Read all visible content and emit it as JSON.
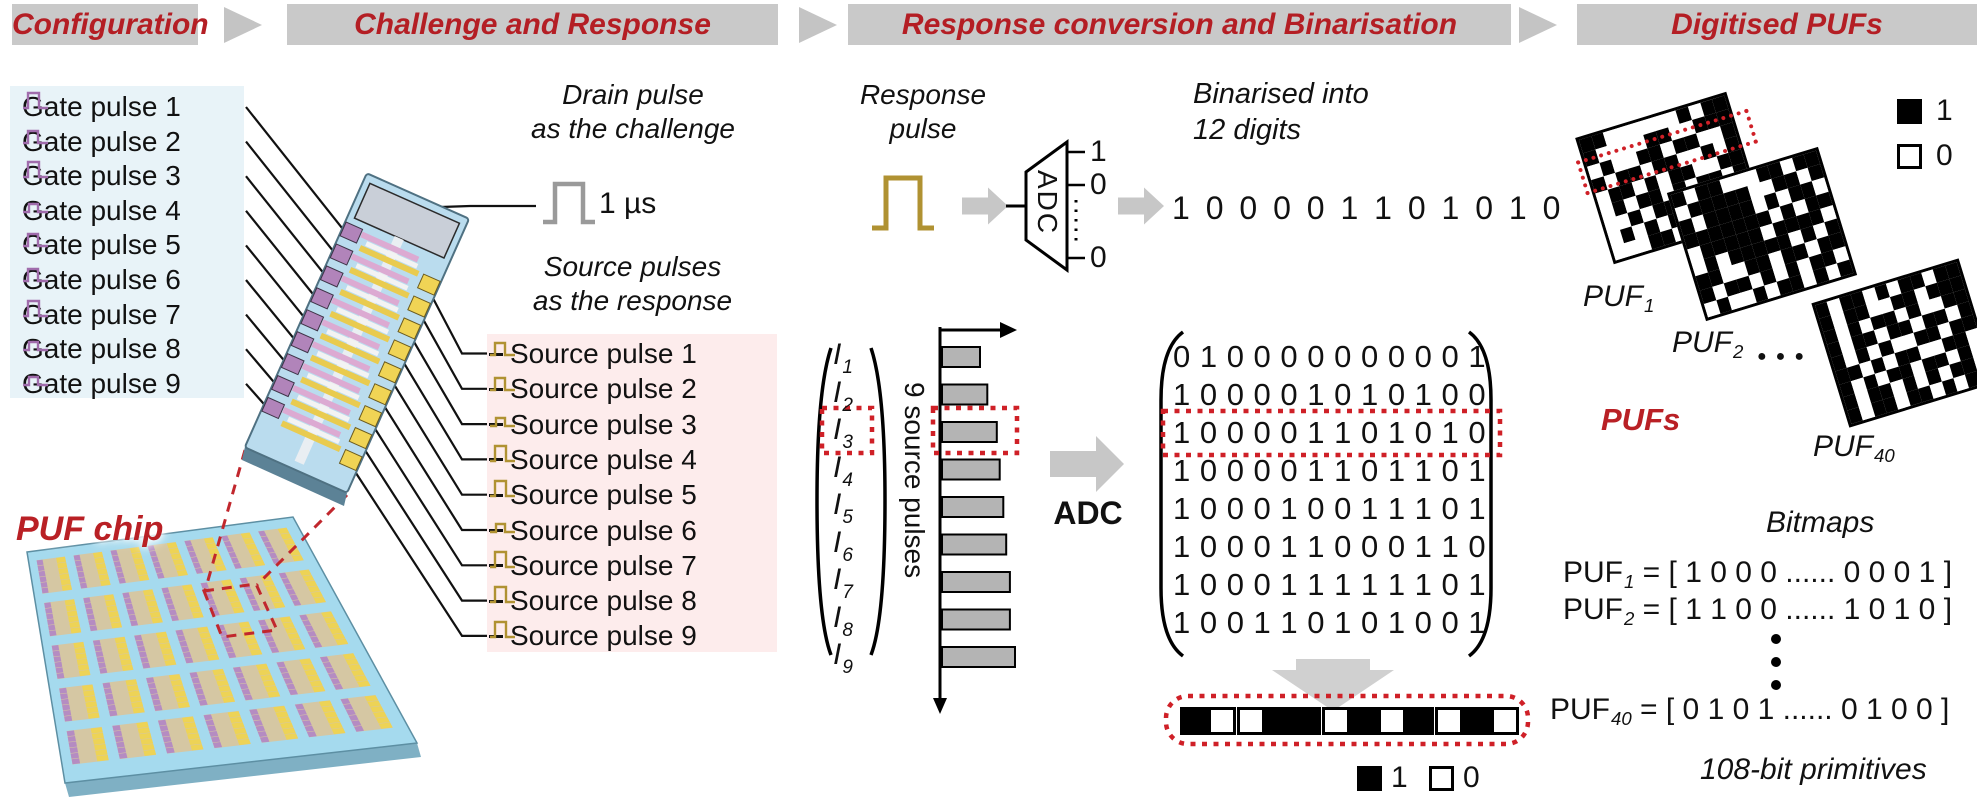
{
  "headers": {
    "steps": [
      "Configuration",
      "Challenge and Response",
      "Response conversion and Binarisation",
      "Digitised PUFs"
    ]
  },
  "palette": {
    "header_bg": "#c9c9c9",
    "accent_red": "#b41e24",
    "dotted_red": "#cf2027",
    "gate_panel_bg": "#e8f3f8",
    "source_panel_bg": "#fdecec",
    "gate_pulse_color": "#a06cac",
    "source_pulse_color": "#b09232",
    "bar_gray": "#b4b4b4",
    "arrow_gray": "#c7c7c7",
    "board_blue": "#a5daee"
  },
  "configuration": {
    "gate_pulses": [
      "Gate pulse 1",
      "Gate pulse 2",
      "Gate pulse 3",
      "Gate pulse 4",
      "Gate pulse 5",
      "Gate pulse 6",
      "Gate pulse 7",
      "Gate pulse 8",
      "Gate pulse 9"
    ],
    "puf_chip_label": "PUF chip"
  },
  "challenge": {
    "drain_caption_line1": "Drain pulse",
    "drain_caption_line2": "as the challenge",
    "pulse_width": "1 µs",
    "source_caption_line1": "Source pulses",
    "source_caption_line2": "as the response",
    "source_pulses": [
      "Source pulse 1",
      "Source pulse 2",
      "Source pulse 3",
      "Source pulse 4",
      "Source pulse 5",
      "Source pulse 6",
      "Source pulse 7",
      "Source pulse 8",
      "Source pulse 9"
    ]
  },
  "conversion": {
    "response_caption_line1": "Response",
    "response_caption_line2": "pulse",
    "adc_symbol_label": "ADC",
    "adc_output_top": "1",
    "adc_output_mid": "0",
    "adc_output_bottom": "0",
    "binarised_caption_line1": "Binarised into",
    "binarised_caption_line2": "12 digits",
    "binary_string": "1 0 0 0 0 1 1 0 1 0 1 0",
    "current_base": "I",
    "current_subscripts": [
      "1",
      "2",
      "3",
      "4",
      "5",
      "6",
      "7",
      "8",
      "9"
    ],
    "axis_label": "9 source pulses",
    "bar_values": [
      0.52,
      0.62,
      0.75,
      0.79,
      0.84,
      0.88,
      0.93,
      0.93,
      1.0
    ],
    "highlighted_index": 2,
    "adc_arrow_label": "ADC",
    "matrix_rows": [
      "010000000001",
      "100001010100",
      "100001101010",
      "100001101101",
      "100010011101",
      "100011000110",
      "100011111101",
      "100110101001"
    ],
    "highlighted_row_index": 2,
    "bit_row": "100110101010",
    "legend_one": "1",
    "legend_zero": "0"
  },
  "digitised": {
    "legend_one": "1",
    "legend_zero": "0",
    "puf_labels": [
      {
        "base": "PUF",
        "sub": "1"
      },
      {
        "base": "PUF",
        "sub": "2"
      },
      {
        "base": "PUF",
        "sub": "40"
      }
    ],
    "ellipsis_dot": "●",
    "pufs_group_label": "PUFs",
    "bitmaps_title": "Bitmaps",
    "equations": [
      {
        "base": "PUF",
        "sub": "1",
        "value": "= [ 1 0 0 0 ...... 0 0 0 1 ]"
      },
      {
        "base": "PUF",
        "sub": "2",
        "value": "= [ 1 1 0 0 ...... 1 0 1 0 ]"
      },
      {
        "base": "PUF",
        "sub": "40",
        "value": "= [ 0 1 0 1 ...... 0 1 0 0 ]"
      }
    ],
    "primitives_caption": "108-bit primitives",
    "bitmap_patterns": {
      "puf1": [
        "110000001011",
        "100001100111",
        "010011011001",
        "101101100101",
        "011010110011",
        "010110101101",
        "001011010011",
        "010101101001",
        "000110010111"
      ],
      "puf2": [
        "101100011011",
        "011111001101",
        "101111010110",
        "111111101011",
        "011111011110",
        "010111110101",
        "110011011011",
        "101101010110",
        "010010110101"
      ],
      "puf40": [
        "101101011011",
        "101100110111",
        "101011010011",
        "101101101101",
        "101010011011",
        "110101100110",
        "101011011010",
        "101101010110",
        "101101101011"
      ]
    }
  }
}
